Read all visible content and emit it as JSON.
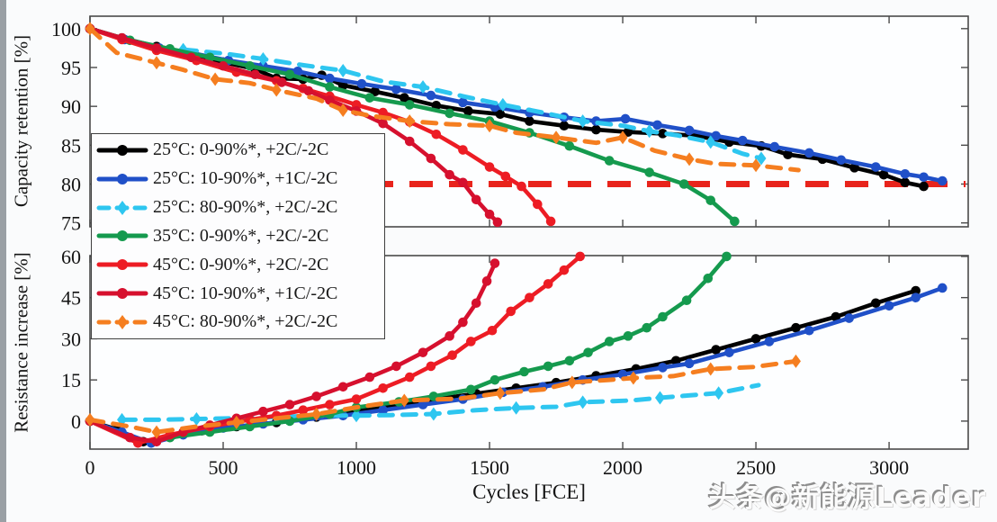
{
  "watermark": {
    "text": "头条@新能源Leader"
  },
  "chart_data": {
    "type": "line",
    "x": {
      "label": "Cycles [FCE]",
      "lim": [
        0,
        3297
      ],
      "ticks": [
        0,
        500,
        1000,
        1500,
        2000,
        2500,
        3000
      ]
    },
    "panels": [
      {
        "id": "capacity",
        "ylabel": "Capacity retention [%]",
        "ylim": [
          74.5,
          101.6
        ],
        "yticks": [
          75,
          80,
          85,
          90,
          95,
          100
        ],
        "threshold": {
          "y": 80,
          "color": "#e8241c",
          "style": "dashed"
        }
      },
      {
        "id": "resistance",
        "ylabel": "Resistance increase [%]",
        "ylim": [
          -10.2,
          60.3
        ],
        "yticks": [
          0,
          15,
          30,
          45,
          60
        ]
      }
    ],
    "legend_position": "upper-left, overlapping both panels",
    "series": [
      {
        "id": "25C-0-90",
        "label": "25°C: 0-90%*, +2C/-2C",
        "color": "#000000",
        "line": "solid",
        "marker": "circle",
        "capacity": [
          [
            0,
            100
          ],
          [
            120,
            98.8
          ],
          [
            250,
            97.7
          ],
          [
            380,
            96.6
          ],
          [
            500,
            95.7
          ],
          [
            620,
            94.8
          ],
          [
            700,
            93.6
          ],
          [
            800,
            93.5
          ],
          [
            870,
            94.0
          ],
          [
            950,
            92.7
          ],
          [
            1070,
            91.9
          ],
          [
            1180,
            91.1
          ],
          [
            1300,
            90.1
          ],
          [
            1420,
            89.4
          ],
          [
            1540,
            89.0
          ],
          [
            1650,
            88.1
          ],
          [
            1780,
            87.5
          ],
          [
            1900,
            87.0
          ],
          [
            2020,
            86.7
          ],
          [
            2150,
            86.5
          ],
          [
            2280,
            86.2
          ],
          [
            2400,
            85.4
          ],
          [
            2520,
            84.9
          ],
          [
            2620,
            83.8
          ],
          [
            2750,
            83.2
          ],
          [
            2870,
            82.1
          ],
          [
            2980,
            81.2
          ],
          [
            3060,
            80.2
          ],
          [
            3130,
            79.7
          ]
        ],
        "resistance": [
          [
            0,
            0
          ],
          [
            100,
            -3
          ],
          [
            200,
            -7.5
          ],
          [
            300,
            -5.5
          ],
          [
            420,
            -3.5
          ],
          [
            550,
            -2
          ],
          [
            700,
            -0.5
          ],
          [
            850,
            1.5
          ],
          [
            1000,
            4
          ],
          [
            1150,
            6
          ],
          [
            1300,
            8
          ],
          [
            1450,
            10
          ],
          [
            1600,
            12
          ],
          [
            1750,
            14
          ],
          [
            1900,
            16.5
          ],
          [
            2050,
            19
          ],
          [
            2200,
            22
          ],
          [
            2350,
            26
          ],
          [
            2500,
            30
          ],
          [
            2650,
            34
          ],
          [
            2800,
            38
          ],
          [
            2950,
            43
          ],
          [
            3100,
            47.5
          ]
        ]
      },
      {
        "id": "25C-10-90",
        "label": "25°C: 10-90%*, +1C/-2C",
        "color": "#2050c8",
        "line": "solid",
        "marker": "circle",
        "capacity": [
          [
            0,
            100
          ],
          [
            130,
            98.6
          ],
          [
            260,
            97.5
          ],
          [
            390,
            96.8
          ],
          [
            520,
            95.9
          ],
          [
            650,
            95.2
          ],
          [
            780,
            94.5
          ],
          [
            900,
            93.6
          ],
          [
            1020,
            92.9
          ],
          [
            1150,
            92.2
          ],
          [
            1280,
            91.4
          ],
          [
            1400,
            90.5
          ],
          [
            1520,
            89.9
          ],
          [
            1650,
            89.2
          ],
          [
            1780,
            88.6
          ],
          [
            1900,
            88.1
          ],
          [
            2010,
            88.4
          ],
          [
            2130,
            87.6
          ],
          [
            2250,
            86.9
          ],
          [
            2350,
            86.2
          ],
          [
            2450,
            85.6
          ],
          [
            2570,
            84.8
          ],
          [
            2700,
            84.0
          ],
          [
            2820,
            83.1
          ],
          [
            2950,
            82.2
          ],
          [
            3060,
            81.3
          ],
          [
            3130,
            80.9
          ],
          [
            3200,
            80.4
          ]
        ],
        "resistance": [
          [
            0,
            0
          ],
          [
            120,
            -4
          ],
          [
            230,
            -8
          ],
          [
            350,
            -5
          ],
          [
            500,
            -2.5
          ],
          [
            650,
            -1
          ],
          [
            800,
            0.5
          ],
          [
            950,
            2
          ],
          [
            1100,
            4
          ],
          [
            1250,
            6
          ],
          [
            1400,
            8
          ],
          [
            1550,
            10.5
          ],
          [
            1700,
            12.5
          ],
          [
            1850,
            15
          ],
          [
            2000,
            17
          ],
          [
            2150,
            19.5
          ],
          [
            2250,
            21
          ],
          [
            2400,
            25
          ],
          [
            2550,
            29
          ],
          [
            2700,
            33
          ],
          [
            2850,
            37.5
          ],
          [
            3000,
            42
          ],
          [
            3100,
            45
          ],
          [
            3200,
            48.5
          ]
        ]
      },
      {
        "id": "25C-80-90",
        "label": "25°C: 80-90%*, +2C/-2C",
        "color": "#2ec6f0",
        "line": "dashed",
        "marker": "diamond",
        "capacity": [
          [
            350,
            97.3
          ],
          [
            500,
            96.8
          ],
          [
            650,
            96.1
          ],
          [
            800,
            95.3
          ],
          [
            950,
            94.6
          ],
          [
            1100,
            93.2
          ],
          [
            1250,
            92.5
          ],
          [
            1400,
            91.3
          ],
          [
            1550,
            90.2
          ],
          [
            1700,
            89.2
          ],
          [
            1850,
            88.1
          ],
          [
            2000,
            87.5
          ],
          [
            2100,
            86.8
          ],
          [
            2200,
            86.3
          ],
          [
            2330,
            85.4
          ],
          [
            2450,
            83.9
          ],
          [
            2520,
            83.3
          ]
        ],
        "resistance": [
          [
            120,
            0.5
          ],
          [
            250,
            0.5
          ],
          [
            400,
            0.8
          ],
          [
            550,
            1
          ],
          [
            700,
            1.5
          ],
          [
            850,
            2
          ],
          [
            1000,
            2
          ],
          [
            1130,
            2.2
          ],
          [
            1290,
            2.6
          ],
          [
            1450,
            4
          ],
          [
            1600,
            4.8
          ],
          [
            1750,
            5.2
          ],
          [
            1850,
            6.9
          ],
          [
            2030,
            7.5
          ],
          [
            2140,
            8.5
          ],
          [
            2230,
            9.2
          ],
          [
            2360,
            10.2
          ],
          [
            2510,
            13.1
          ]
        ]
      },
      {
        "id": "35C-0-90",
        "label": "35°C: 0-90%*, +2C/-2C",
        "color": "#159a4e",
        "line": "solid",
        "marker": "circle",
        "capacity": [
          [
            0,
            100
          ],
          [
            150,
            98.5
          ],
          [
            300,
            97.4
          ],
          [
            450,
            96.3
          ],
          [
            600,
            95.2
          ],
          [
            750,
            94.1
          ],
          [
            900,
            92.5
          ],
          [
            1050,
            91.1
          ],
          [
            1200,
            90.2
          ],
          [
            1350,
            89.1
          ],
          [
            1500,
            88.1
          ],
          [
            1650,
            86.6
          ],
          [
            1800,
            84.9
          ],
          [
            1950,
            83.0
          ],
          [
            2100,
            81.5
          ],
          [
            2230,
            80.0
          ],
          [
            2330,
            77.9
          ],
          [
            2420,
            75.2
          ]
        ],
        "resistance": [
          [
            0,
            0
          ],
          [
            180,
            -7.5
          ],
          [
            300,
            -6
          ],
          [
            450,
            -4
          ],
          [
            600,
            -2
          ],
          [
            750,
            0
          ],
          [
            900,
            2.5
          ],
          [
            1000,
            5
          ],
          [
            1160,
            7
          ],
          [
            1290,
            9
          ],
          [
            1430,
            11.5
          ],
          [
            1520,
            15
          ],
          [
            1630,
            18
          ],
          [
            1720,
            20
          ],
          [
            1800,
            22
          ],
          [
            1870,
            25
          ],
          [
            1950,
            29
          ],
          [
            2020,
            31
          ],
          [
            2090,
            34
          ],
          [
            2150,
            38
          ],
          [
            2240,
            44
          ],
          [
            2320,
            52
          ],
          [
            2390,
            60
          ]
        ]
      },
      {
        "id": "45C-0-90",
        "label": "45°C: 0-90%*, +2C/-2C",
        "color": "#ed1c24",
        "line": "solid",
        "marker": "circle",
        "capacity": [
          [
            0,
            100
          ],
          [
            120,
            98.6
          ],
          [
            250,
            97.2
          ],
          [
            400,
            95.9
          ],
          [
            550,
            94.4
          ],
          [
            700,
            93.3
          ],
          [
            800,
            92.3
          ],
          [
            900,
            91.3
          ],
          [
            1000,
            90.2
          ],
          [
            1100,
            89.2
          ],
          [
            1200,
            88.0
          ],
          [
            1300,
            86.4
          ],
          [
            1400,
            84.4
          ],
          [
            1500,
            82.2
          ],
          [
            1560,
            81.0
          ],
          [
            1620,
            79.7
          ],
          [
            1680,
            77.4
          ],
          [
            1730,
            75.2
          ]
        ],
        "resistance": [
          [
            0,
            0
          ],
          [
            180,
            -8
          ],
          [
            300,
            -5
          ],
          [
            450,
            -2
          ],
          [
            600,
            0.5
          ],
          [
            700,
            2
          ],
          [
            800,
            4
          ],
          [
            900,
            6
          ],
          [
            1000,
            8
          ],
          [
            1100,
            12
          ],
          [
            1200,
            16
          ],
          [
            1280,
            20
          ],
          [
            1360,
            24
          ],
          [
            1430,
            29
          ],
          [
            1510,
            33
          ],
          [
            1580,
            40
          ],
          [
            1650,
            45
          ],
          [
            1720,
            50
          ],
          [
            1780,
            55
          ],
          [
            1840,
            60
          ]
        ]
      },
      {
        "id": "45C-10-90",
        "label": "45°C: 10-90%*, +1C/-2C",
        "color": "#d6102e",
        "line": "solid",
        "marker": "circle",
        "capacity": [
          [
            0,
            100
          ],
          [
            120,
            98.8
          ],
          [
            250,
            97.5
          ],
          [
            380,
            96.3
          ],
          [
            500,
            95.2
          ],
          [
            620,
            94.1
          ],
          [
            720,
            93.1
          ],
          [
            820,
            92.0
          ],
          [
            900,
            90.8
          ],
          [
            1000,
            89.4
          ],
          [
            1100,
            87.8
          ],
          [
            1200,
            85.5
          ],
          [
            1280,
            83.3
          ],
          [
            1350,
            81.2
          ],
          [
            1400,
            80.2
          ],
          [
            1450,
            78.0
          ],
          [
            1500,
            76.1
          ],
          [
            1530,
            75.1
          ]
        ],
        "resistance": [
          [
            0,
            0
          ],
          [
            150,
            -6
          ],
          [
            250,
            -7.5
          ],
          [
            350,
            -4
          ],
          [
            450,
            -1.5
          ],
          [
            550,
            1
          ],
          [
            650,
            3.5
          ],
          [
            750,
            6
          ],
          [
            850,
            9
          ],
          [
            950,
            12.5
          ],
          [
            1050,
            16
          ],
          [
            1150,
            20
          ],
          [
            1250,
            25
          ],
          [
            1350,
            31
          ],
          [
            1400,
            36
          ],
          [
            1450,
            43
          ],
          [
            1490,
            51
          ],
          [
            1520,
            57.5
          ]
        ]
      },
      {
        "id": "45C-80-90",
        "label": "45°C: 80-90%*, +2C/-2C",
        "color": "#f57e20",
        "line": "dashed",
        "marker": "diamond",
        "capacity": [
          [
            0,
            100
          ],
          [
            100,
            96.9
          ],
          [
            250,
            95.6
          ],
          [
            350,
            94.7
          ],
          [
            470,
            93.5
          ],
          [
            600,
            93.0
          ],
          [
            700,
            92.1
          ],
          [
            850,
            91.0
          ],
          [
            950,
            89.5
          ],
          [
            1050,
            88.8
          ],
          [
            1200,
            88.1
          ],
          [
            1350,
            87.7
          ],
          [
            1500,
            87.5
          ],
          [
            1600,
            86.6
          ],
          [
            1750,
            86.0
          ],
          [
            1900,
            85.3
          ],
          [
            2000,
            86.0
          ],
          [
            2120,
            84.3
          ],
          [
            2250,
            83.2
          ],
          [
            2350,
            82.6
          ],
          [
            2500,
            82.4
          ],
          [
            2660,
            81.8
          ]
        ],
        "resistance": [
          [
            0,
            0.5
          ],
          [
            150,
            -2
          ],
          [
            250,
            -4
          ],
          [
            400,
            -2
          ],
          [
            550,
            -0.5
          ],
          [
            700,
            1
          ],
          [
            850,
            2.5
          ],
          [
            1000,
            5
          ],
          [
            1180,
            7.5
          ],
          [
            1390,
            8.2
          ],
          [
            1540,
            10.2
          ],
          [
            1700,
            11.5
          ],
          [
            1810,
            14.1
          ],
          [
            1950,
            15
          ],
          [
            2040,
            15.7
          ],
          [
            2190,
            16.4
          ],
          [
            2330,
            19
          ],
          [
            2490,
            19.7
          ],
          [
            2650,
            21.8
          ]
        ]
      }
    ]
  }
}
